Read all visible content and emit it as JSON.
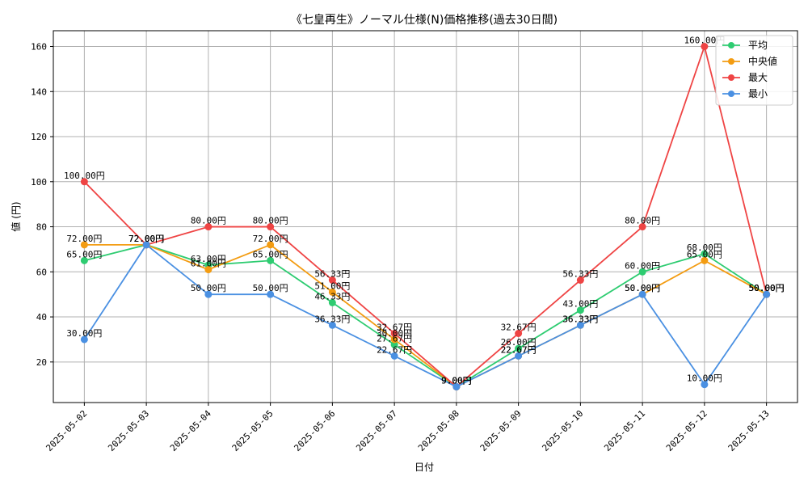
{
  "chart_data": {
    "type": "line",
    "title": "《七皇再生》ノーマル仕様(N)価格推移(過去30日間)",
    "xlabel": "日付",
    "ylabel": "値 (円)",
    "categories": [
      "2025-05-02",
      "2025-05-03",
      "2025-05-04",
      "2025-05-05",
      "2025-05-06",
      "2025-05-07",
      "2025-05-08",
      "2025-05-09",
      "2025-05-10",
      "2025-05-11",
      "2025-05-12",
      "2025-05-13"
    ],
    "ylim": [
      2,
      167
    ],
    "yticks": [
      20,
      40,
      60,
      80,
      100,
      120,
      140,
      160
    ],
    "grid": true,
    "legend_position": "top-right",
    "value_suffix": "円",
    "series": [
      {
        "name": "平均",
        "color": "#2ecc71",
        "values": [
          65.0,
          72.0,
          63.0,
          65.0,
          46.33,
          27.67,
          9.0,
          26.0,
          43.0,
          60.0,
          68.0,
          50.0
        ]
      },
      {
        "name": "中央値",
        "color": "#f39c12",
        "values": [
          72.0,
          72.0,
          61.0,
          72.0,
          51.0,
          30.0,
          9.0,
          22.67,
          36.33,
          50.0,
          65.0,
          50.0
        ]
      },
      {
        "name": "最大",
        "color": "#ef4444",
        "values": [
          100.0,
          72.0,
          80.0,
          80.0,
          56.33,
          32.67,
          9.0,
          32.67,
          56.33,
          80.0,
          160.0,
          50.0
        ]
      },
      {
        "name": "最小",
        "color": "#4a90e2",
        "values": [
          30.0,
          72.0,
          50.0,
          50.0,
          36.33,
          22.67,
          9.0,
          22.67,
          36.33,
          50.0,
          10.0,
          50.0
        ]
      }
    ]
  }
}
